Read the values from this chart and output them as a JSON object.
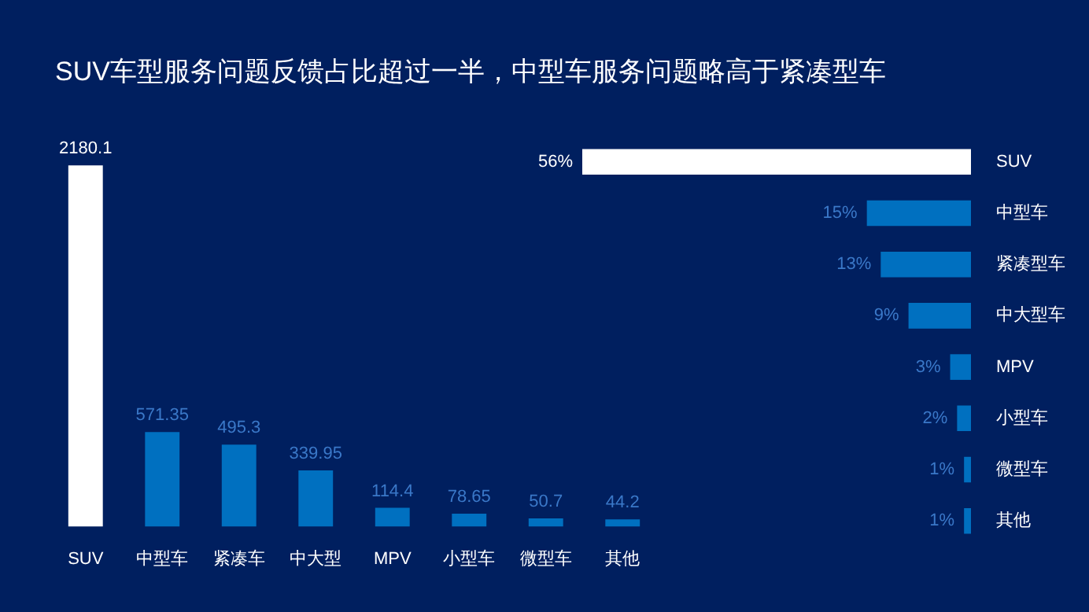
{
  "chart_data": [
    {
      "type": "bar",
      "title": "SUV车型服务问题反馈占比超过一半，中型车服务问题略高于紧凑型车",
      "categories": [
        "SUV",
        "中型车",
        "紧凑车",
        "中大型",
        "MPV",
        "小型车",
        "微型车",
        "其他"
      ],
      "values": [
        2180.1,
        571.35,
        495.3,
        339.95,
        114.4,
        78.65,
        50.7,
        44.2
      ],
      "colors": [
        "#ffffff",
        "#0070c0",
        "#0070c0",
        "#0070c0",
        "#0070c0",
        "#0070c0",
        "#0070c0",
        "#0070c0"
      ],
      "ylim": [
        0,
        2200
      ],
      "tick_labels": "x",
      "data_labels": true,
      "grid": false,
      "legend": false
    },
    {
      "type": "bar",
      "orientation": "horizontal",
      "categories": [
        "SUV",
        "中型车",
        "紧凑型车",
        "中大型车",
        "MPV",
        "小型车",
        "微型车",
        "其他"
      ],
      "values": [
        56,
        15,
        13,
        9,
        3,
        2,
        1,
        1
      ],
      "value_labels": [
        "56%",
        "15%",
        "13%",
        "9%",
        "3%",
        "2%",
        "1%",
        "1%"
      ],
      "colors": [
        "#ffffff",
        "#0070c0",
        "#0070c0",
        "#0070c0",
        "#0070c0",
        "#0070c0",
        "#0070c0",
        "#0070c0"
      ],
      "xlim": [
        56,
        0
      ],
      "tick_labels": "y",
      "grid": false,
      "legend": false
    }
  ]
}
